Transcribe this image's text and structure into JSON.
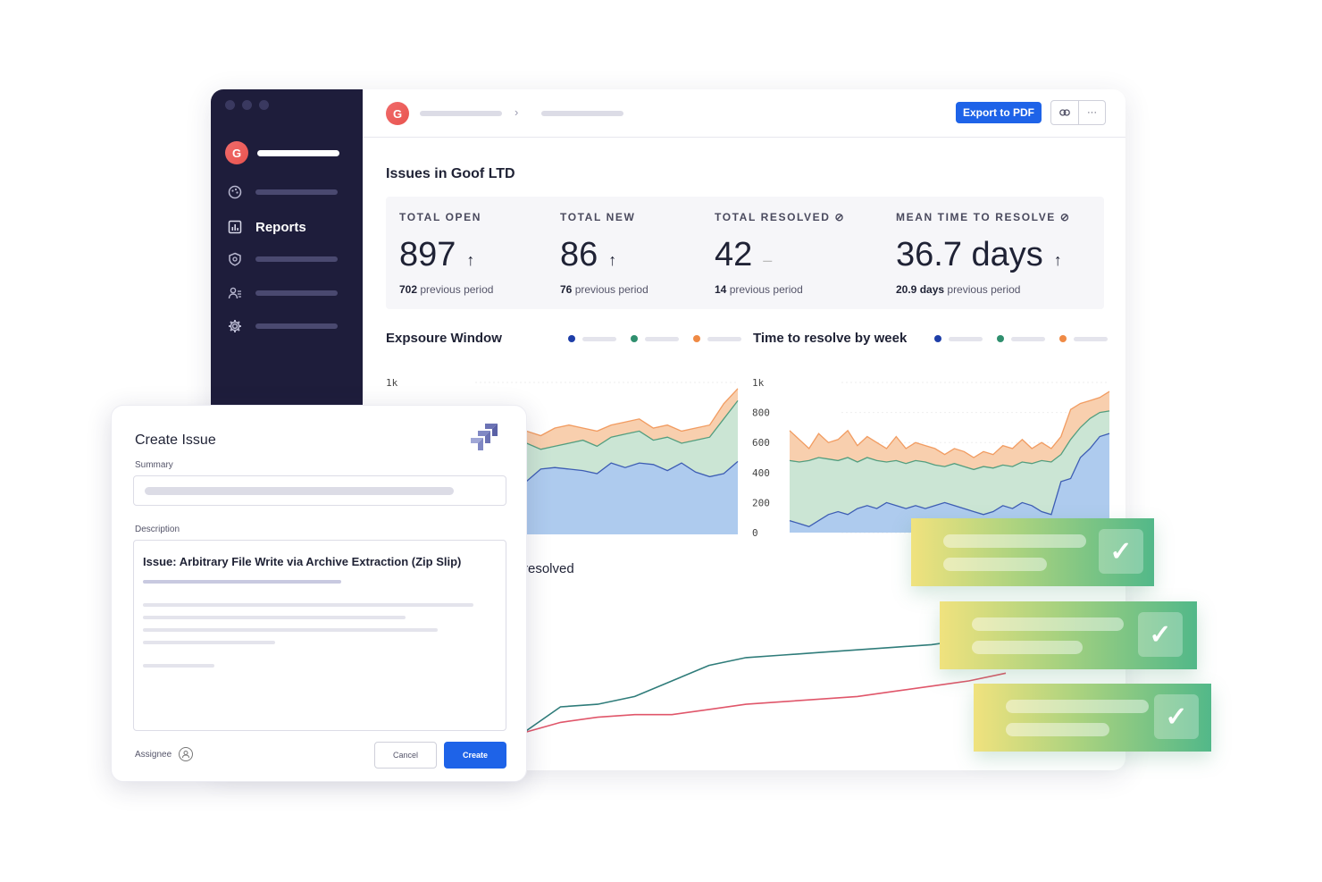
{
  "sidebar": {
    "avatar_letter": "G",
    "items": [
      {
        "icon": "palette-icon",
        "label": ""
      },
      {
        "icon": "chart-report-icon",
        "label": "Reports"
      },
      {
        "icon": "shield-icon",
        "label": ""
      },
      {
        "icon": "users-icon",
        "label": ""
      },
      {
        "icon": "gear-icon",
        "label": ""
      }
    ]
  },
  "topbar": {
    "avatar_letter": "G",
    "breadcrumb_separator": "›",
    "export_label": "Export to PDF",
    "link_icon": "link-icon",
    "more_label": "···"
  },
  "page_title": "Issues in Goof LTD",
  "stats": [
    {
      "label": "TOTAL OPEN",
      "value": "897",
      "trend": "↑",
      "prev_value": "702",
      "prev_text": "previous period"
    },
    {
      "label": "TOTAL NEW",
      "value": "86",
      "trend": "↑",
      "prev_value": "76",
      "prev_text": "previous period"
    },
    {
      "label": "TOTAL RESOLVED ⊘",
      "value": "42",
      "trend": "–",
      "prev_value": "14",
      "prev_text": "previous period"
    },
    {
      "label": "MEAN TIME TO RESOLVE ⊘",
      "value": "36.7 days",
      "trend": "↑",
      "prev_value": "20.9 days",
      "prev_text": "previous period"
    }
  ],
  "colors": {
    "blue": "#1e3ea8",
    "green": "#2f8f6e",
    "orange": "#ef8a45",
    "area_blue": "#aecbee",
    "area_green": "#cbe5d4",
    "area_orange": "#f8cfae",
    "accent": "#1e63e8"
  },
  "charts": {
    "exposure": {
      "title": "Expsoure Window",
      "ytick_top": "1k"
    },
    "ttr": {
      "title": "Time to resolve by week",
      "yticks": [
        "1k",
        "800",
        "600",
        "400",
        "200",
        "0"
      ]
    },
    "resolved": {
      "title_fragment": "resolved"
    }
  },
  "chart_data": [
    {
      "type": "area",
      "title": "Expsoure Window",
      "ylim": [
        0,
        1000
      ],
      "series": [
        {
          "values": [
            440,
            470,
            380,
            430,
            470,
            480,
            470,
            420,
            460,
            440,
            350,
            430,
            440,
            430,
            420,
            400,
            470,
            440,
            470,
            460,
            420,
            470,
            410,
            380,
            400,
            480
          ]
        },
        {
          "values": [
            500,
            540,
            560,
            520,
            560,
            540,
            520,
            500,
            540,
            560,
            600,
            560,
            580,
            600,
            620,
            580,
            640,
            660,
            680,
            620,
            640,
            600,
            620,
            640,
            760,
            880
          ]
        },
        {
          "values": [
            560,
            600,
            620,
            580,
            640,
            620,
            600,
            580,
            620,
            640,
            680,
            650,
            700,
            720,
            700,
            680,
            720,
            740,
            760,
            700,
            720,
            680,
            700,
            720,
            860,
            960
          ]
        }
      ]
    },
    {
      "type": "area",
      "title": "Time to resolve by week",
      "ylim": [
        0,
        1000
      ],
      "yticks": [
        0,
        200,
        400,
        600,
        800,
        1000
      ],
      "series": [
        {
          "values": [
            80,
            60,
            40,
            80,
            120,
            140,
            120,
            160,
            180,
            160,
            200,
            180,
            160,
            180,
            160,
            180,
            200,
            180,
            160,
            140,
            120,
            140,
            180,
            160,
            200,
            180,
            140,
            120,
            340,
            360,
            500,
            560,
            640,
            660
          ]
        },
        {
          "values": [
            480,
            470,
            480,
            500,
            490,
            480,
            500,
            470,
            500,
            480,
            470,
            480,
            460,
            480,
            470,
            450,
            440,
            460,
            440,
            420,
            440,
            430,
            450,
            440,
            470,
            460,
            480,
            470,
            520,
            620,
            700,
            760,
            800,
            810
          ]
        },
        {
          "values": [
            680,
            620,
            560,
            660,
            600,
            620,
            680,
            580,
            640,
            600,
            560,
            640,
            560,
            600,
            580,
            560,
            520,
            560,
            540,
            500,
            540,
            520,
            580,
            560,
            620,
            560,
            600,
            560,
            640,
            820,
            860,
            880,
            900,
            940
          ]
        }
      ]
    },
    {
      "type": "line",
      "title": "resolved",
      "series": [
        {
          "values": [
            0,
            100,
            110,
            140,
            200,
            260,
            290,
            300,
            310,
            320,
            330,
            340,
            360,
            380
          ]
        },
        {
          "values": [
            0,
            40,
            60,
            70,
            70,
            90,
            110,
            120,
            130,
            140,
            160,
            180,
            200,
            230
          ]
        }
      ]
    }
  ],
  "dialog": {
    "title": "Create Issue",
    "summary_label": "Summary",
    "description_label": "Description",
    "description_title": "Issue: Arbitrary File Write via Archive Extraction (Zip Slip)",
    "assignee_label": "Assignee",
    "cancel_label": "Cancel",
    "create_label": "Create"
  },
  "cards": [
    {
      "check": "✓"
    },
    {
      "check": "✓"
    },
    {
      "check": "✓"
    }
  ]
}
